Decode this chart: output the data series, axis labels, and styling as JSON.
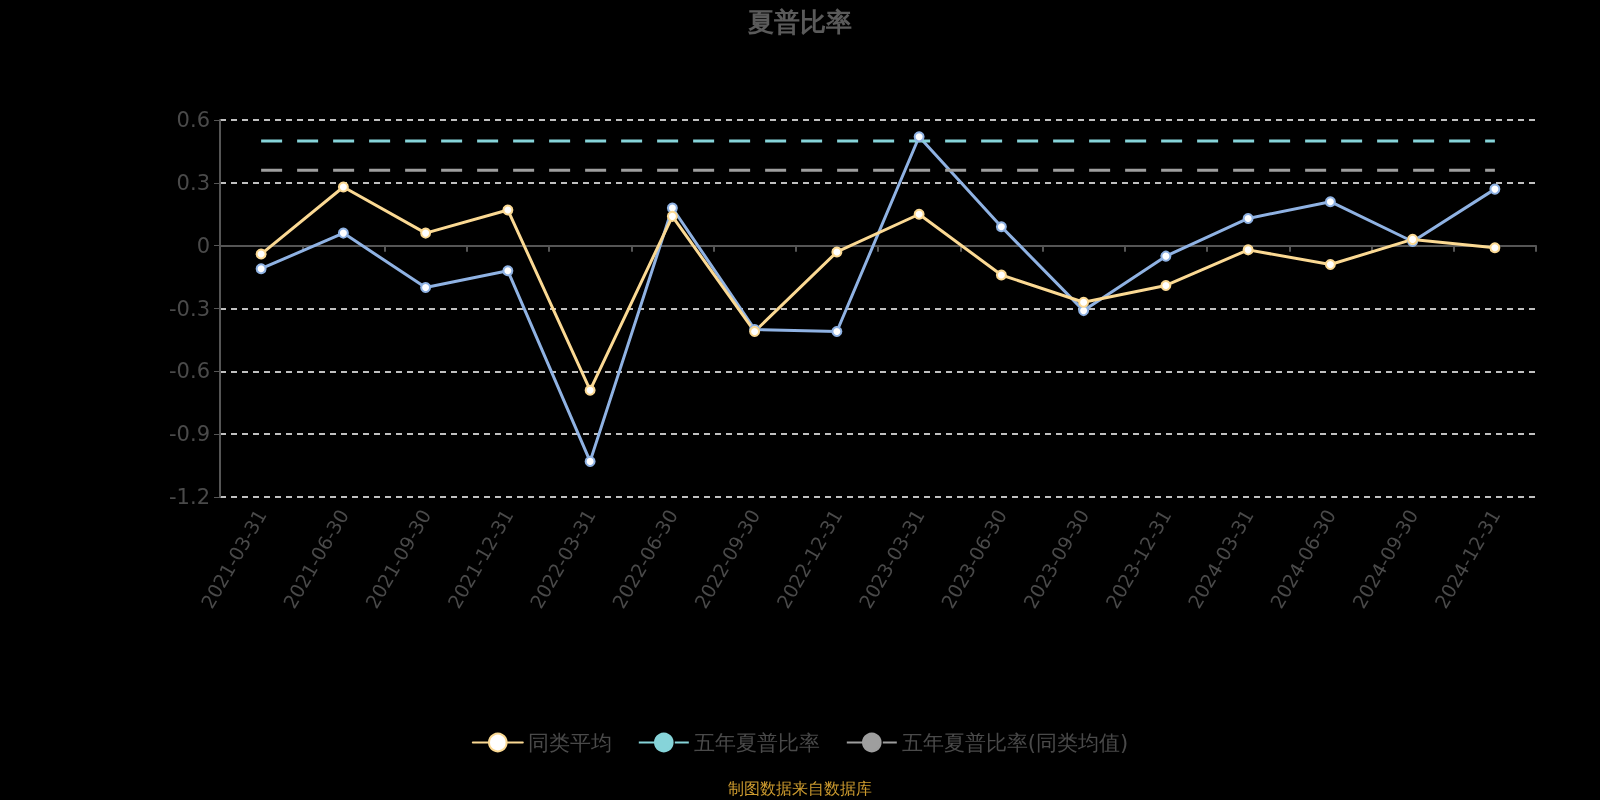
{
  "chart_data": {
    "type": "line",
    "title": "夏普比率",
    "categories": [
      "2021-03-31",
      "2021-06-30",
      "2021-09-30",
      "2021-12-31",
      "2022-03-31",
      "2022-06-30",
      "2022-09-30",
      "2022-12-31",
      "2023-03-31",
      "2023-06-30",
      "2023-09-30",
      "2023-12-31",
      "2024-03-31",
      "2024-06-30",
      "2024-09-30",
      "2024-12-31"
    ],
    "series": [
      {
        "color": "#8fb2e3",
        "marker": "circle",
        "line_style": "solid",
        "values": [
          -0.11,
          0.06,
          -0.2,
          -0.12,
          -1.03,
          0.18,
          -0.4,
          -0.41,
          0.52,
          0.09,
          -0.31,
          -0.05,
          0.13,
          0.21,
          0.02,
          0.27
        ]
      },
      {
        "name": "同类平均",
        "color": "#fbd993",
        "marker": "circle",
        "line_style": "solid",
        "values": [
          -0.04,
          0.28,
          0.06,
          0.17,
          -0.69,
          0.14,
          -0.41,
          -0.03,
          0.15,
          -0.14,
          -0.27,
          -0.19,
          -0.02,
          -0.09,
          0.03,
          -0.01
        ]
      },
      {
        "name": "五年夏普比率",
        "color": "#86d4d9",
        "marker": "none",
        "line_style": "dashed",
        "values": [
          0.5,
          0.5,
          0.5,
          0.5,
          0.5,
          0.5,
          0.5,
          0.5,
          0.5,
          0.5,
          0.5,
          0.5,
          0.5,
          0.5,
          0.5,
          0.5
        ]
      },
      {
        "name": "五年夏普比率(同类均值)",
        "color": "#9e9e9e",
        "marker": "none",
        "line_style": "dashed",
        "values": [
          0.36,
          0.36,
          0.36,
          0.36,
          0.36,
          0.36,
          0.36,
          0.36,
          0.36,
          0.36,
          0.36,
          0.36,
          0.36,
          0.36,
          0.36,
          0.36
        ]
      }
    ],
    "ylim": [
      -1.2,
      0.6
    ],
    "yticks": [
      -1.2,
      -0.9,
      -0.6,
      -0.3,
      0,
      0.3,
      0.6
    ],
    "grid": "y",
    "legend": "bottom",
    "annotations": [
      "制图数据来自数据库"
    ]
  }
}
